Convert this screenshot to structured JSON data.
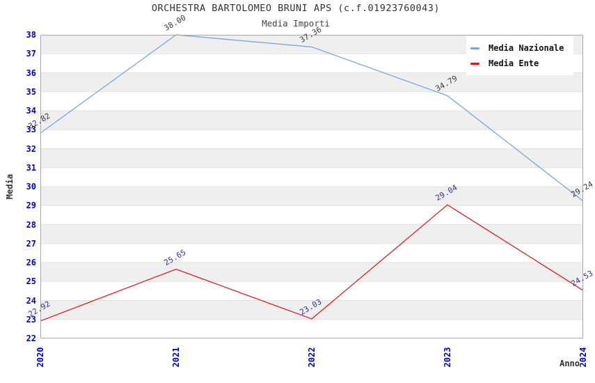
{
  "title": "ORCHESTRA BARTOLOMEO BRUNI APS (c.f.01923760043)",
  "subtitle": "Media Importi",
  "axes": {
    "x_label": "Anno",
    "y_label": "Media",
    "x_ticks": [
      "2020",
      "2021",
      "2022",
      "2023",
      "2024"
    ],
    "y_ticks": [
      38,
      37,
      36,
      35,
      34,
      33,
      32,
      31,
      30,
      29,
      28,
      27,
      26,
      25,
      24,
      23,
      22
    ],
    "y_min": 22,
    "y_max": 38
  },
  "legend": {
    "position": "top-right",
    "items": [
      {
        "label": "Media Nazionale",
        "color": "#75a8e2"
      },
      {
        "label": "Media Ente",
        "color": "#e31a1a"
      }
    ]
  },
  "colors": {
    "tick_label": "#0000cd",
    "band_fill": "#efefef",
    "gridline": "#e2e2e2",
    "plot_border": "#a8a8a8",
    "title_text": "#333333"
  },
  "chart_data": {
    "type": "line",
    "title": "ORCHESTRA BARTOLOMEO BRUNI APS (c.f.01923760043)",
    "subtitle": "Media Importi",
    "xlabel": "Anno",
    "ylabel": "Media",
    "x": [
      "2020",
      "2021",
      "2022",
      "2023",
      "2024"
    ],
    "ylim": [
      22,
      38
    ],
    "grid": "horizontal-bands",
    "legend_position": "top-right",
    "series": [
      {
        "name": "Media Nazionale",
        "color": "#75a8e2",
        "values": [
          32.82,
          38.0,
          37.36,
          34.79,
          29.24
        ],
        "point_labels": [
          "32.82",
          "38.00",
          "37.36",
          "34.79",
          "29.24"
        ],
        "label_color": "#3a3a3a"
      },
      {
        "name": "Media Ente",
        "color": "#e31a1a",
        "values": [
          22.92,
          25.65,
          23.03,
          29.04,
          24.53
        ],
        "point_labels": [
          "22.92",
          "25.65",
          "23.03",
          "29.04",
          "24.53"
        ],
        "label_color": "#333399"
      }
    ]
  }
}
